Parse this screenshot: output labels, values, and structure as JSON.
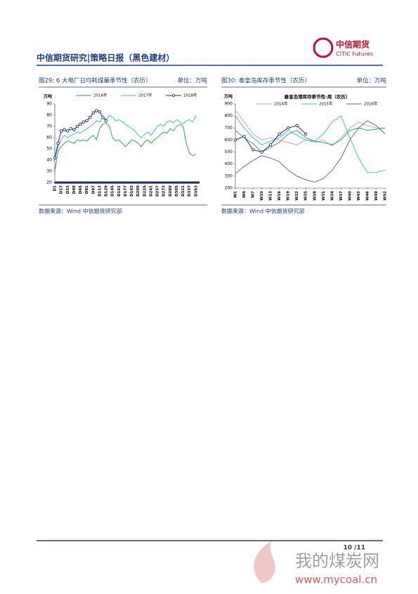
{
  "header": {
    "title": "中信期货研究|策略日报（黑色建材）",
    "logo_cn": "中信期货",
    "logo_en": "CITIC Futures"
  },
  "chart_data": [
    {
      "type": "line",
      "title": "图29: 6 大电厂日均耗煤量季节性（农历）",
      "unit": "单位：万吨",
      "y_label": "万吨",
      "source": "数据来源：Wind  中信期货研究部",
      "x": [
        1,
        9,
        17,
        25,
        33,
        41,
        49,
        57,
        65,
        73,
        81,
        89,
        97,
        105,
        113,
        121,
        129,
        137,
        145,
        153,
        161,
        169,
        177,
        185,
        193,
        201,
        209,
        217,
        225,
        233,
        241,
        249,
        257,
        265,
        273,
        281,
        289,
        297,
        305,
        313,
        321,
        329,
        337,
        345,
        353
      ],
      "xlim": [
        1,
        362
      ],
      "xticks": [
        {
          "value": 1,
          "label": "D1"
        },
        {
          "value": 17,
          "label": "D17"
        },
        {
          "value": 33,
          "label": "D33"
        },
        {
          "value": 49,
          "label": "D49"
        },
        {
          "value": 65,
          "label": "D65"
        },
        {
          "value": 81,
          "label": "D81"
        },
        {
          "value": 97,
          "label": "D97"
        },
        {
          "value": 113,
          "label": "D113"
        },
        {
          "value": 129,
          "label": "D129"
        },
        {
          "value": 145,
          "label": "D145"
        },
        {
          "value": 161,
          "label": "D161"
        },
        {
          "value": 177,
          "label": "D177"
        },
        {
          "value": 193,
          "label": "D193"
        },
        {
          "value": 209,
          "label": "D209"
        },
        {
          "value": 225,
          "label": "D225"
        },
        {
          "value": 241,
          "label": "D241"
        },
        {
          "value": 257,
          "label": "D257"
        },
        {
          "value": 273,
          "label": "D273"
        },
        {
          "value": 289,
          "label": "D289"
        },
        {
          "value": 305,
          "label": "D305"
        },
        {
          "value": 321,
          "label": "D321"
        },
        {
          "value": 337,
          "label": "D337"
        },
        {
          "value": 353,
          "label": "D353"
        }
      ],
      "ylim": [
        20,
        90
      ],
      "yticks": [
        20,
        30,
        40,
        50,
        60,
        70,
        80,
        90
      ],
      "series": [
        {
          "name": "2016年",
          "color": "#2aa84a",
          "values": [
            30,
            48,
            52,
            55,
            57,
            56,
            55,
            58,
            57,
            58,
            57,
            60,
            62,
            58,
            68,
            72,
            73,
            70,
            60,
            57,
            58,
            55,
            52,
            55,
            58,
            57,
            55,
            52,
            56,
            58,
            55,
            58,
            60,
            63,
            65,
            64,
            68,
            66,
            70,
            72,
            70,
            55,
            46,
            44,
            45
          ]
        },
        {
          "name": "2017年",
          "color": "#33c0d6",
          "values": [
            40,
            52,
            58,
            62,
            60,
            62,
            63,
            65,
            64,
            66,
            68,
            70,
            72,
            75,
            74,
            78,
            76,
            80,
            78,
            75,
            76,
            74,
            72,
            70,
            68,
            66,
            62,
            60,
            63,
            65,
            62,
            66,
            70,
            72,
            70,
            74,
            75,
            73,
            76,
            74,
            72,
            75,
            76,
            74,
            80
          ]
        },
        {
          "name": "2018年",
          "color": "#1f2a6b",
          "marker": true,
          "values": [
            42,
            55,
            66,
            67,
            66,
            68,
            67,
            70,
            72,
            74,
            75,
            78,
            82,
            84,
            83,
            78,
            75,
            null,
            null,
            null,
            null,
            null,
            null,
            null,
            null,
            null,
            null,
            null,
            null,
            null,
            null,
            null,
            null,
            null,
            null,
            null,
            null,
            null,
            null,
            null,
            null,
            null,
            null,
            null,
            null
          ]
        }
      ]
    },
    {
      "type": "line",
      "title": "图30: 秦皇岛库存季节性（农历）",
      "unit": "单位：万吨",
      "subtitle": "秦皇岛港库存季节性-周（农历）",
      "y_label": "万吨",
      "source": "数据来源：Wind  中信期货研究部",
      "x": [
        1,
        4,
        7,
        10,
        13,
        16,
        19,
        22,
        25,
        28,
        31,
        34,
        37,
        40,
        43,
        46,
        49,
        52
      ],
      "xlim": [
        1,
        52
      ],
      "xticks": [
        {
          "value": 1,
          "label": "W1"
        },
        {
          "value": 4,
          "label": "W4"
        },
        {
          "value": 7,
          "label": "W7"
        },
        {
          "value": 10,
          "label": "W10"
        },
        {
          "value": 13,
          "label": "W13"
        },
        {
          "value": 16,
          "label": "W16"
        },
        {
          "value": 19,
          "label": "W19"
        },
        {
          "value": 22,
          "label": "W22"
        },
        {
          "value": 25,
          "label": "W25"
        },
        {
          "value": 28,
          "label": "W28"
        },
        {
          "value": 31,
          "label": "W31"
        },
        {
          "value": 34,
          "label": "W34"
        },
        {
          "value": 37,
          "label": "W37"
        },
        {
          "value": 40,
          "label": "W40"
        },
        {
          "value": 43,
          "label": "W43"
        },
        {
          "value": 46,
          "label": "W46"
        },
        {
          "value": 49,
          "label": "W49"
        },
        {
          "value": 52,
          "label": "W52"
        }
      ],
      "ylim": [
        200,
        900
      ],
      "yticks": [
        200,
        300,
        400,
        500,
        600,
        700,
        800,
        900
      ],
      "series": [
        {
          "name": "2014年",
          "color": "#b9a6d6",
          "values": [
            850,
            750,
            650,
            600,
            620,
            600,
            580,
            560,
            600,
            580,
            600,
            550,
            620,
            700,
            750,
            720,
            700,
            700
          ]
        },
        {
          "name": "2015年",
          "color": "#33c0d6",
          "values": [
            800,
            700,
            620,
            560,
            590,
            620,
            680,
            640,
            600,
            590,
            650,
            750,
            800,
            620,
            450,
            330,
            330,
            350
          ]
        },
        {
          "name": "2016年",
          "color": "#7b5aa6",
          "values": [
            320,
            380,
            430,
            470,
            450,
            420,
            350,
            300,
            270,
            250,
            280,
            350,
            450,
            600,
            700,
            760,
            720,
            650
          ]
        },
        {
          "color": "#2aa84a",
          "values": [
            680,
            620,
            570,
            500,
            540,
            580,
            650,
            680,
            620,
            590,
            580,
            560,
            600,
            680,
            700,
            680,
            690,
            700
          ]
        },
        {
          "color": "#1f2a6b",
          "marker": true,
          "values": [
            600,
            630,
            520,
            500,
            560,
            650,
            700,
            720,
            650,
            null,
            null,
            null,
            null,
            null,
            null,
            null,
            null,
            null
          ]
        }
      ]
    }
  ],
  "footer": {
    "page": "10 /11"
  },
  "watermark": {
    "name": "我的煤炭网",
    "url": "www.mycoal.cn"
  }
}
